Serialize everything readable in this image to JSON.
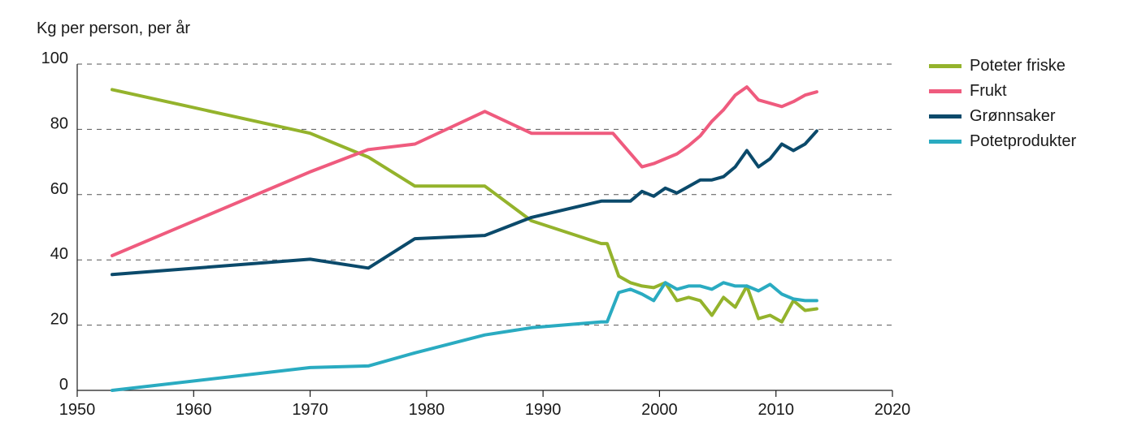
{
  "chart_data": {
    "type": "line",
    "ylabel": "Kg per person, per år",
    "xlabel": "",
    "xlim": [
      1950,
      2020
    ],
    "ylim": [
      0,
      100
    ],
    "xticks": [
      1950,
      1960,
      1970,
      1980,
      1990,
      2000,
      2010,
      2020
    ],
    "yticks": [
      0,
      20,
      40,
      60,
      80,
      100
    ],
    "grid": "horizontal-dashed",
    "legend_position": "right",
    "series": [
      {
        "name": "Poteter friske",
        "color": "#94b32c",
        "points": [
          [
            1953,
            92.2
          ],
          [
            1970,
            78.8
          ],
          [
            1975,
            71.5
          ],
          [
            1979,
            62.6
          ],
          [
            1985,
            62.6
          ],
          [
            1989,
            52
          ],
          [
            1995,
            45
          ],
          [
            1995.5,
            45
          ],
          [
            1996.5,
            35
          ],
          [
            1997.5,
            33
          ],
          [
            1998.5,
            32
          ],
          [
            1999.5,
            31.5
          ],
          [
            2000.5,
            33
          ],
          [
            2001.5,
            27.5
          ],
          [
            2002.5,
            28.5
          ],
          [
            2003.5,
            27.5
          ],
          [
            2004.5,
            23
          ],
          [
            2005.5,
            28.5
          ],
          [
            2006.5,
            25.5
          ],
          [
            2007.5,
            32
          ],
          [
            2008.5,
            22
          ],
          [
            2009.5,
            23
          ],
          [
            2010.5,
            21
          ],
          [
            2011.5,
            27.5
          ],
          [
            2012.5,
            24.5
          ],
          [
            2013.5,
            25
          ]
        ]
      },
      {
        "name": "Frukt",
        "color": "#ef5b7e",
        "points": [
          [
            1953,
            41.3
          ],
          [
            1970,
            67
          ],
          [
            1975,
            73.8
          ],
          [
            1979,
            75.5
          ],
          [
            1985,
            85.5
          ],
          [
            1989,
            78.8
          ],
          [
            1996,
            78.8
          ],
          [
            1998.5,
            68.5
          ],
          [
            1999.5,
            69.5
          ],
          [
            2000.5,
            71
          ],
          [
            2001.5,
            72.5
          ],
          [
            2002.5,
            75
          ],
          [
            2003.5,
            78
          ],
          [
            2004.5,
            82.5
          ],
          [
            2005.5,
            86
          ],
          [
            2006.5,
            90.5
          ],
          [
            2007.5,
            93
          ],
          [
            2008.5,
            89
          ],
          [
            2009.5,
            88
          ],
          [
            2010.5,
            87
          ],
          [
            2011.5,
            88.5
          ],
          [
            2012.5,
            90.5
          ],
          [
            2013.5,
            91.5
          ]
        ]
      },
      {
        "name": "Grønnsaker",
        "color": "#0b4a6b",
        "points": [
          [
            1953,
            35.5
          ],
          [
            1970,
            40.2
          ],
          [
            1975,
            37.5
          ],
          [
            1979,
            46.5
          ],
          [
            1985,
            47.5
          ],
          [
            1989,
            53
          ],
          [
            1995,
            58
          ],
          [
            1996.5,
            58
          ],
          [
            1997.5,
            58
          ],
          [
            1998.5,
            61
          ],
          [
            1999.5,
            59.5
          ],
          [
            2000.5,
            62
          ],
          [
            2001.5,
            60.5
          ],
          [
            2002.5,
            62.5
          ],
          [
            2003.5,
            64.5
          ],
          [
            2004.5,
            64.5
          ],
          [
            2005.5,
            65.5
          ],
          [
            2006.5,
            68.5
          ],
          [
            2007.5,
            73.5
          ],
          [
            2008.5,
            68.5
          ],
          [
            2009.5,
            71
          ],
          [
            2010.5,
            75.5
          ],
          [
            2011.5,
            73.5
          ],
          [
            2012.5,
            75.5
          ],
          [
            2013.5,
            79.5
          ]
        ]
      },
      {
        "name": "Potetprodukter",
        "color": "#2aabc1",
        "points": [
          [
            1953,
            0
          ],
          [
            1970,
            7
          ],
          [
            1975,
            7.5
          ],
          [
            1979,
            11.5
          ],
          [
            1985,
            17
          ],
          [
            1989,
            19.2
          ],
          [
            1995,
            21
          ],
          [
            1995.5,
            21
          ],
          [
            1996.5,
            30
          ],
          [
            1997.5,
            31
          ],
          [
            1998.5,
            29.5
          ],
          [
            1999.5,
            27.5
          ],
          [
            2000.5,
            33
          ],
          [
            2001.5,
            31
          ],
          [
            2002.5,
            32
          ],
          [
            2003.5,
            32
          ],
          [
            2004.5,
            31
          ],
          [
            2005.5,
            33
          ],
          [
            2006.5,
            32
          ],
          [
            2007.5,
            32
          ],
          [
            2008.5,
            30.5
          ],
          [
            2009.5,
            32.5
          ],
          [
            2010.5,
            29.5
          ],
          [
            2011.5,
            28
          ],
          [
            2012.5,
            27.5
          ],
          [
            2013.5,
            27.5
          ]
        ]
      }
    ]
  }
}
